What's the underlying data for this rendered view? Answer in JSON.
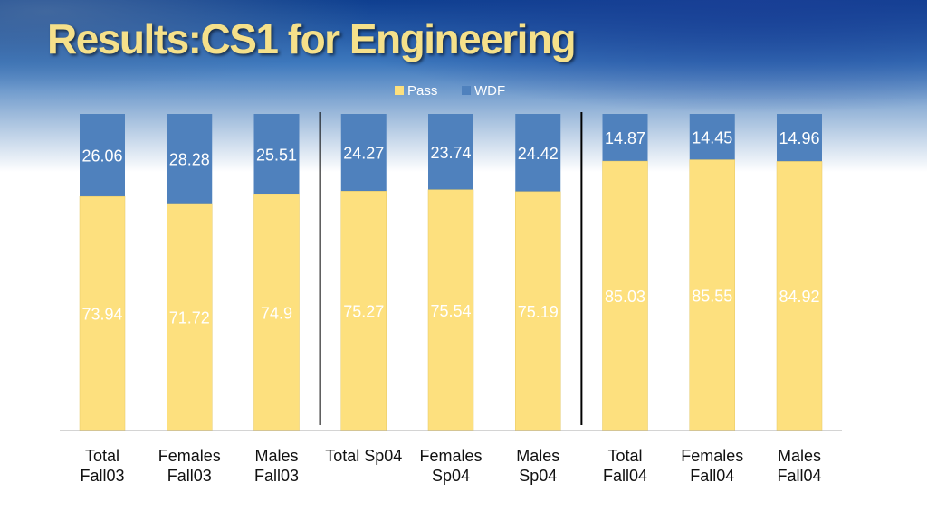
{
  "slide": {
    "title": "Results:CS1 for Engineering"
  },
  "colors": {
    "pass": "#fde07e",
    "wdf": "#4f81bd",
    "pass_stroke": "#e6c864",
    "axis": "#aaaaaa",
    "divider": "#000000"
  },
  "chart_data": {
    "type": "bar",
    "stacked": true,
    "percent_stacked": true,
    "categories": [
      [
        "Total",
        "Fall03"
      ],
      [
        "Females",
        "Fall03"
      ],
      [
        "Males",
        "Fall03"
      ],
      [
        "Total Sp04"
      ],
      [
        "Females",
        "Sp04"
      ],
      [
        "Males",
        "Sp04"
      ],
      [
        "Total",
        "Fall04"
      ],
      [
        "Females",
        "Fall04"
      ],
      [
        "Males",
        "Fall04"
      ]
    ],
    "series": [
      {
        "name": "Pass",
        "values": [
          73.94,
          71.72,
          74.9,
          75.27,
          75.54,
          75.19,
          85.03,
          85.55,
          84.92
        ]
      },
      {
        "name": "WDF",
        "values": [
          26.06,
          28.28,
          25.51,
          24.27,
          23.74,
          24.42,
          14.87,
          14.45,
          14.96
        ]
      }
    ],
    "value_labels_pass": [
      "73.94",
      "71.72",
      "74.9",
      "75.27",
      "75.54",
      "75.19",
      "85.03",
      "85.55",
      "84.92"
    ],
    "value_labels_wdf": [
      "26.06",
      "28.28",
      "25.51",
      "24.27",
      "23.74",
      "24.42",
      "14.87",
      "14.45",
      "14.96"
    ],
    "ylim": [
      0,
      100
    ],
    "legend_position": "top-center",
    "group_dividers_after": [
      2,
      5
    ],
    "grid": false,
    "title": "",
    "xlabel": "",
    "ylabel": ""
  }
}
